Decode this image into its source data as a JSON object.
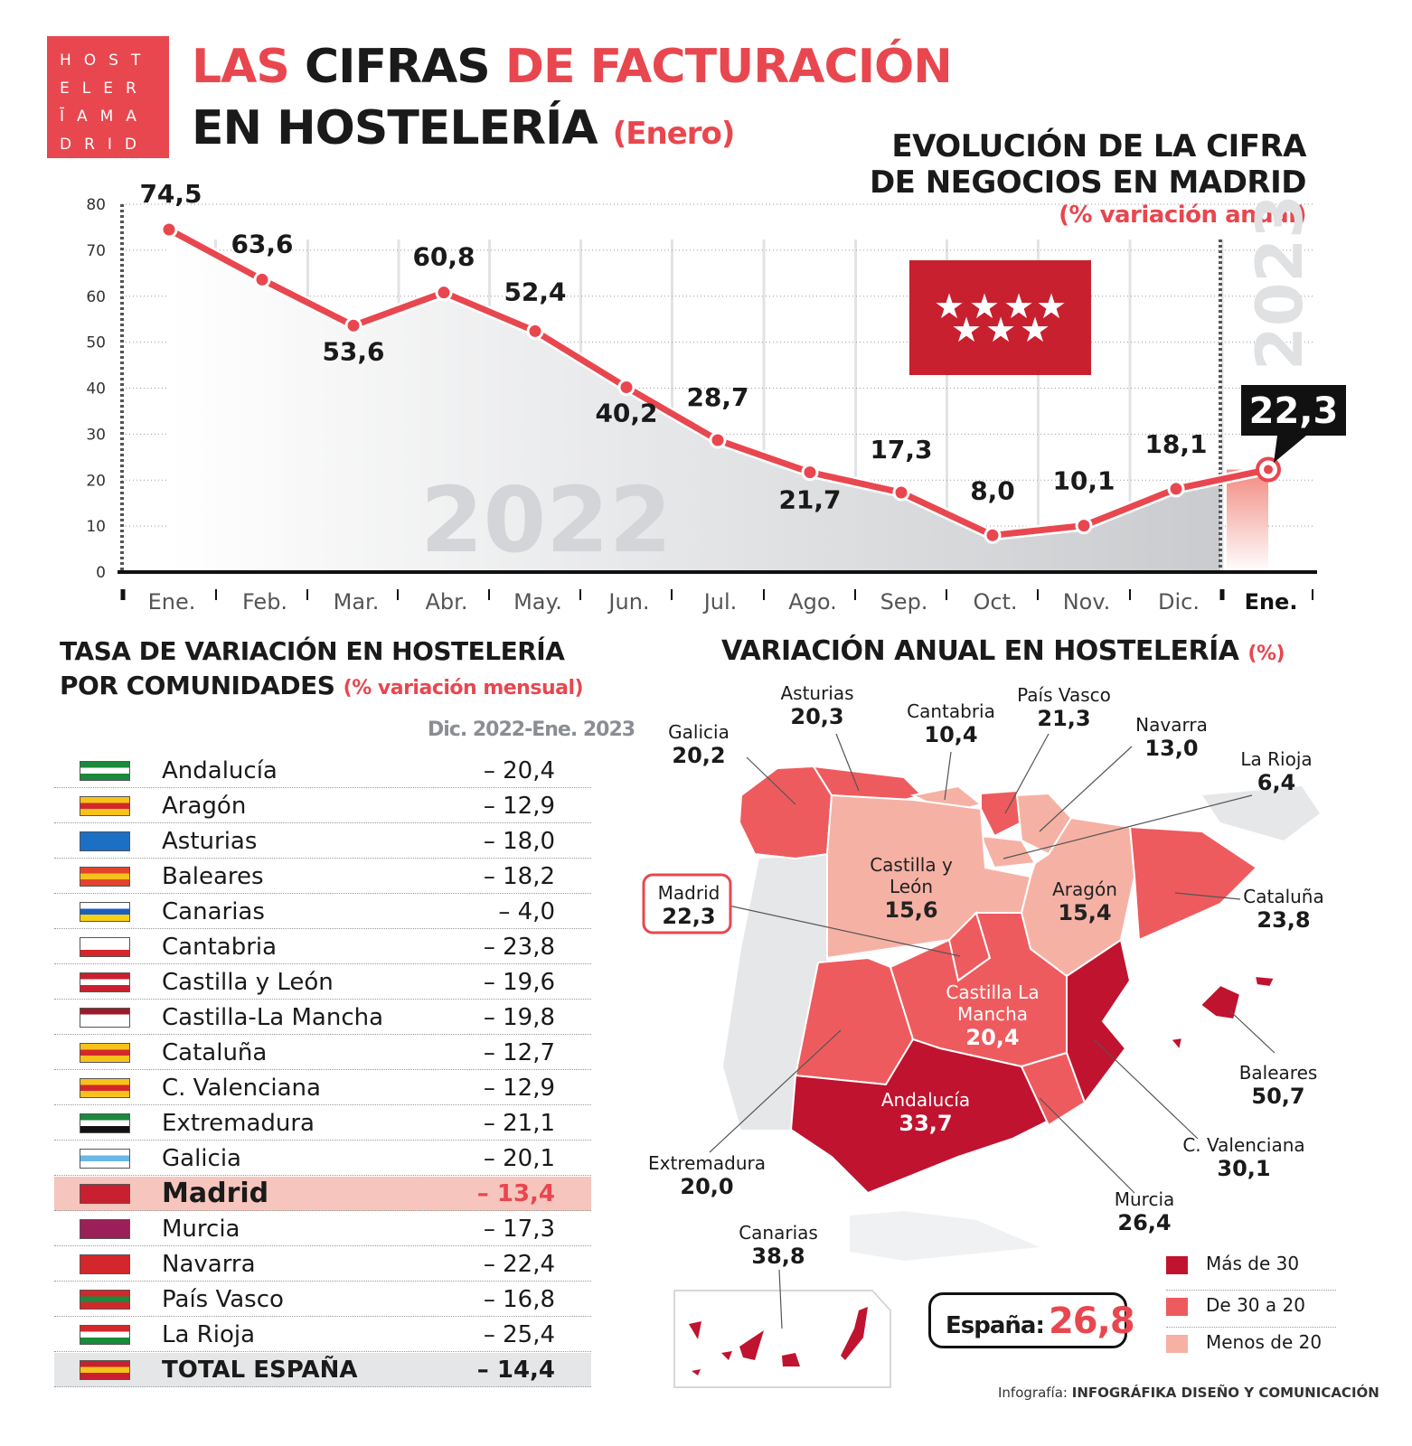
{
  "logo": {
    "lines": [
      "HOST",
      "ELER",
      "ĪAMA",
      "DRID"
    ]
  },
  "title": {
    "line1": [
      "LAS ",
      "CIFRAS ",
      "DE FACTURACIÓN"
    ],
    "line2": "EN HOSTELERÍA",
    "line2_suffix": "(Enero)"
  },
  "chart_data": {
    "type": "line",
    "title": [
      "EVOLUCIÓN DE LA CIFRA",
      "DE NEGOCIOS EN MADRID"
    ],
    "subtitle": "(% variación anual)",
    "categories": [
      "Ene.",
      "Feb.",
      "Mar.",
      "Abr.",
      "May.",
      "Jun.",
      "Jul.",
      "Ago.",
      "Sep.",
      "Oct.",
      "Nov.",
      "Dic.",
      "Ene."
    ],
    "values": [
      74.5,
      63.6,
      53.6,
      60.8,
      52.4,
      40.2,
      28.7,
      21.7,
      17.3,
      8.0,
      10.1,
      18.1,
      22.3
    ],
    "labels": [
      "74,5",
      "63,6",
      "53,6",
      "60,8",
      "52,4",
      "40,2",
      "28,7",
      "21,7",
      "17,3",
      "8,0",
      "10,1",
      "18,1",
      "22,3"
    ],
    "yticks": [
      "0",
      "10",
      "20",
      "30",
      "40",
      "50",
      "60",
      "70",
      "80"
    ],
    "ylim": [
      0,
      80
    ],
    "year_labels": [
      "2022",
      "2023"
    ],
    "grid": true,
    "line_color": "#e8474f"
  },
  "table": {
    "title": [
      "TASA DE VARIACIÓN EN HOSTELERÍA",
      "POR COMUNIDADES"
    ],
    "subtitle": "(% variación mensual)",
    "column": "Dic. 2022-Ene. 2023",
    "rows": [
      {
        "name": "Andalucía",
        "value": "– 20,4"
      },
      {
        "name": "Aragón",
        "value": "– 12,9"
      },
      {
        "name": "Asturias",
        "value": "– 18,0"
      },
      {
        "name": "Baleares",
        "value": "– 18,2"
      },
      {
        "name": "Canarias",
        "value": "– 4,0"
      },
      {
        "name": "Cantabria",
        "value": "– 23,8"
      },
      {
        "name": "Castilla y León",
        "value": "– 19,6"
      },
      {
        "name": "Castilla-La Mancha",
        "value": "– 19,8"
      },
      {
        "name": "Cataluña",
        "value": "– 12,7"
      },
      {
        "name": "C. Valenciana",
        "value": "– 12,9"
      },
      {
        "name": "Extremadura",
        "value": "– 21,1"
      },
      {
        "name": "Galicia",
        "value": "– 20,1"
      },
      {
        "name": "Madrid",
        "value": "– 13,4"
      },
      {
        "name": "Murcia",
        "value": "– 17,3"
      },
      {
        "name": "Navarra",
        "value": "– 22,4"
      },
      {
        "name": "País Vasco",
        "value": "– 16,8"
      },
      {
        "name": "La Rioja",
        "value": "– 25,4"
      },
      {
        "name": "TOTAL ESPAÑA",
        "value": "– 14,4"
      }
    ]
  },
  "map": {
    "title": "VARIACIÓN ANUAL EN HOSTELERÍA",
    "title_suffix": "(%)",
    "regions": [
      {
        "name": "Galicia",
        "value": "20,2"
      },
      {
        "name": "Asturias",
        "value": "20,3"
      },
      {
        "name": "Cantabria",
        "value": "10,4"
      },
      {
        "name": "País Vasco",
        "value": "21,3"
      },
      {
        "name": "Navarra",
        "value": "13,0"
      },
      {
        "name": "La Rioja",
        "value": "6,4"
      },
      {
        "name": "Castilla y León",
        "value": "15,6"
      },
      {
        "name": "Aragón",
        "value": "15,4"
      },
      {
        "name": "Cataluña",
        "value": "23,8"
      },
      {
        "name": "Madrid",
        "value": "22,3"
      },
      {
        "name": "Castilla La Mancha",
        "value": "20,4"
      },
      {
        "name": "Baleares",
        "value": "50,7"
      },
      {
        "name": "Andalucía",
        "value": "33,7"
      },
      {
        "name": "C. Valenciana",
        "value": "30,1"
      },
      {
        "name": "Extremadura",
        "value": "20,0"
      },
      {
        "name": "Murcia",
        "value": "26,4"
      },
      {
        "name": "Canarias",
        "value": "38,8"
      }
    ],
    "espana_label": "España:",
    "espana_value": "26,8",
    "legend": [
      {
        "label": "Más de 30",
        "color": "#c0132f"
      },
      {
        "label": "De 30 a 20",
        "color": "#ee5b5e"
      },
      {
        "label": "Menos de 20",
        "color": "#f6b1a5"
      }
    ]
  },
  "credit": {
    "prefix": "Infografía: ",
    "name": "INFOGRÁFIKA DISEÑO Y COMUNICACIÓN"
  }
}
